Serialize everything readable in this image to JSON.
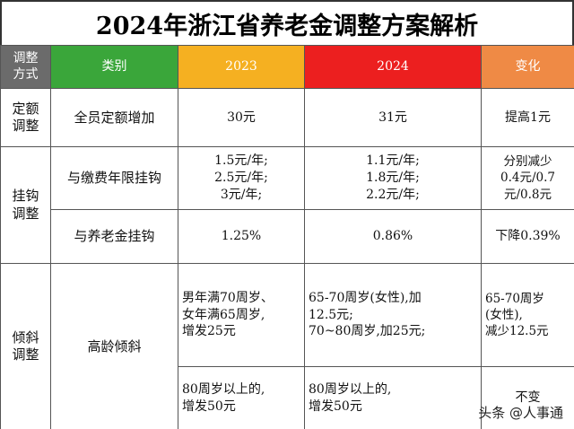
{
  "title": "2024年浙江省养老金调整方案解析",
  "header": {
    "label": "调整\n方式",
    "category": "类别",
    "year_2023": "2023",
    "year_2024": "2024",
    "change": "变化"
  },
  "rows": {
    "fixed": {
      "group": "定额\n调整",
      "item": "全员定额增加",
      "v2023": "30元",
      "v2024": "31元",
      "change": "提高1元"
    },
    "linked": {
      "group": "挂钩\n调整",
      "years": {
        "item": "与缴费年限挂钩",
        "v2023": "1.5元/年;\n2.5元/年;\n3元/年;",
        "v2024": "1.1元/年;\n1.8元/年;\n2.2元/年;",
        "change": "分别减少\n0.4元/0.7\n元/0.8元"
      },
      "pension": {
        "item": "与养老金挂钩",
        "v2023": "1.25%",
        "v2024": "0.86%",
        "change": "下降0.39%"
      }
    },
    "tilt": {
      "group": "倾斜\n调整",
      "item": "高龄倾斜",
      "row1": {
        "v2023": "男年满70周岁、\n女年满65周岁,\n增发25元",
        "v2024": "65-70周岁(女性),加\n12.5元;\n70~80周岁,加25元;",
        "change": "65-70周岁\n(女性),\n减少12.5元"
      },
      "row2": {
        "v2023": "80周岁以上的,\n增发50元",
        "v2024": "80周岁以上的,\n增发50元",
        "change": "不变"
      }
    }
  },
  "watermark": {
    "text": "头条 @人事通",
    "icon": "at-icon"
  }
}
